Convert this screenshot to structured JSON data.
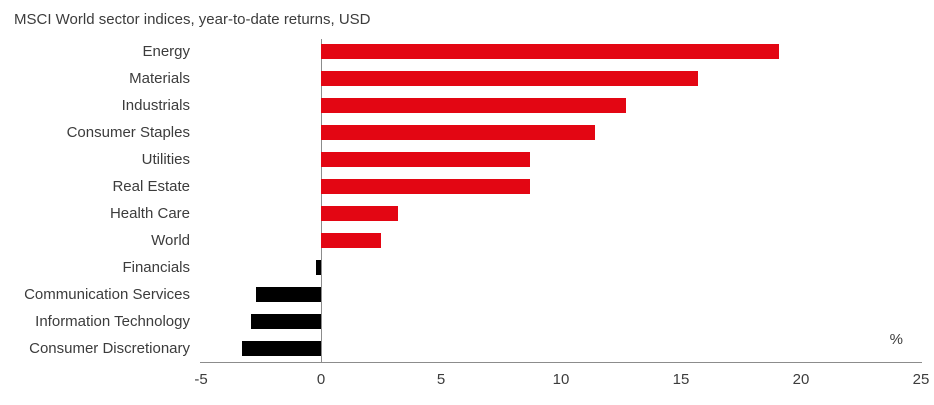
{
  "chart_data": {
    "type": "bar",
    "orientation": "horizontal",
    "title": "MSCI World sector indices, year-to-date returns, USD",
    "categories": [
      "Energy",
      "Materials",
      "Industrials",
      "Consumer Staples",
      "Utilities",
      "Real Estate",
      "Health Care",
      "World",
      "Financials",
      "Communication Services",
      "Information Technology",
      "Consumer Discretionary"
    ],
    "values": [
      19.1,
      15.7,
      12.7,
      11.4,
      8.7,
      8.7,
      3.2,
      2.5,
      -0.2,
      -2.7,
      -2.9,
      -3.3
    ],
    "xlabel": "%",
    "xlim": [
      -5,
      25
    ],
    "xticks": [
      -5,
      0,
      5,
      10,
      15,
      20,
      25
    ],
    "grid": false,
    "legend": "none",
    "colors": {
      "positive_bar": "#e30613",
      "negative_bar": "#000000",
      "axis_line": "#8c8c8c",
      "text": "#3c3c3c"
    }
  }
}
